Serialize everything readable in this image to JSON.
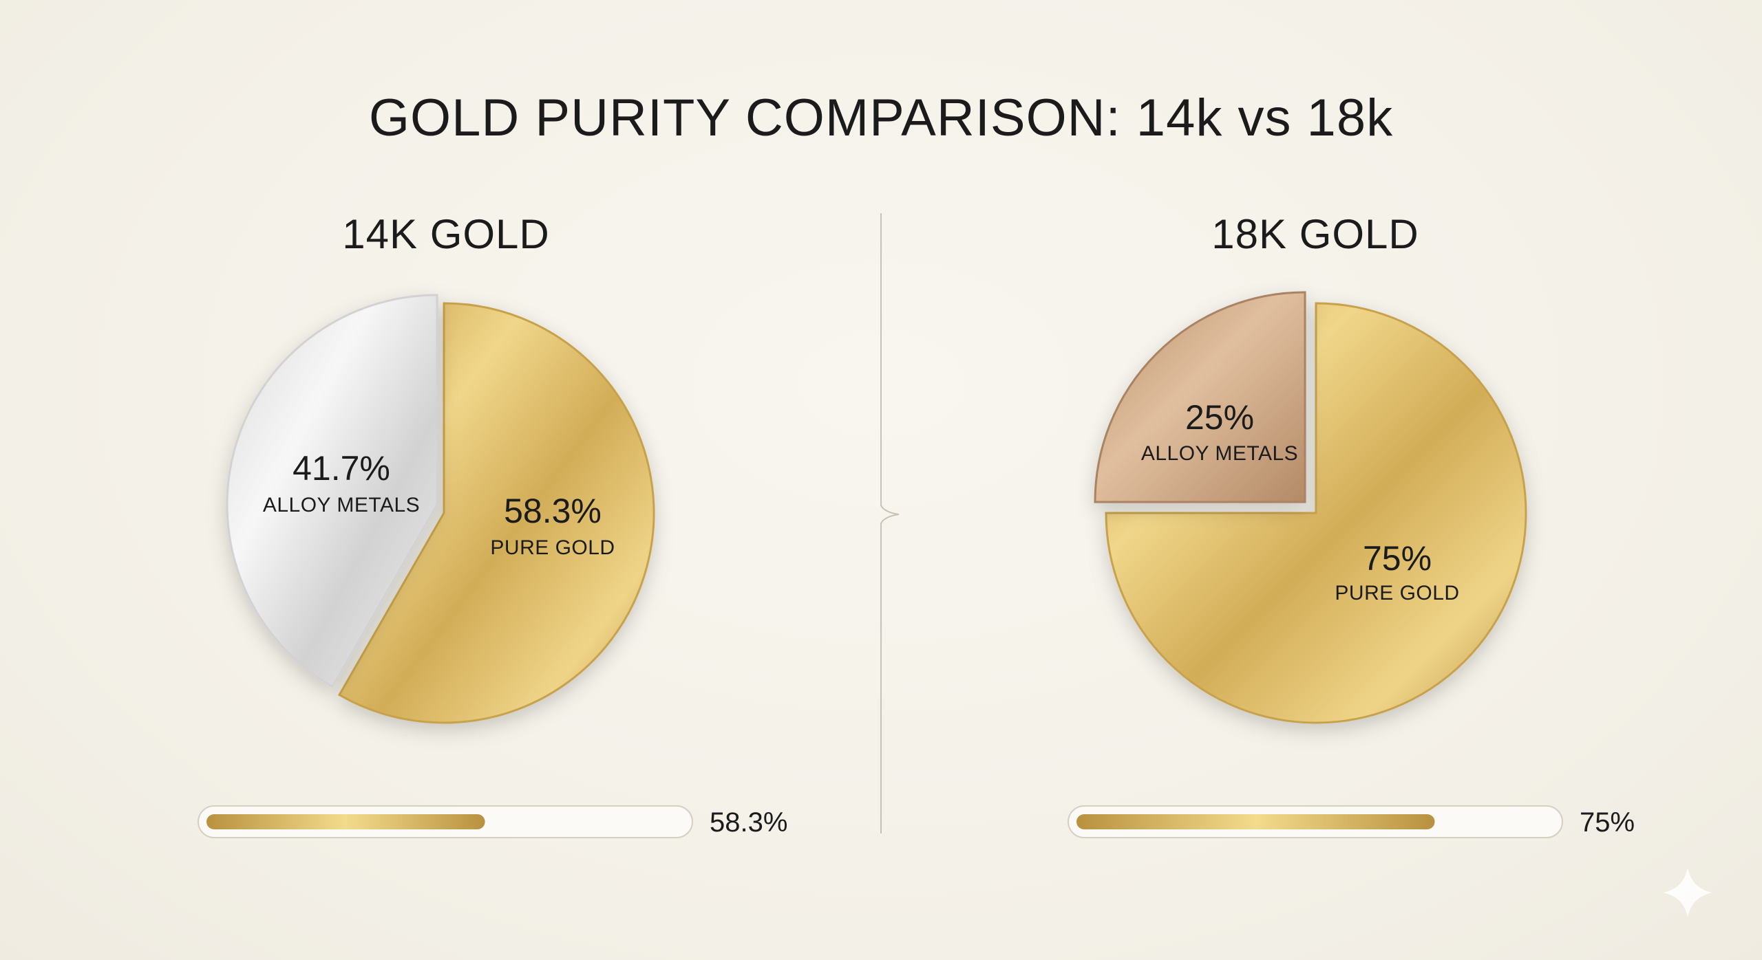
{
  "title": "GOLD PURITY COMPARISON: 14k vs 18k",
  "colors": {
    "gold_light": "#f3db8c",
    "gold_mid": "#d8b45c",
    "gold_dark": "#b8913f",
    "silver_light": "#f6f6f6",
    "silver_mid": "#dcdcdc",
    "silver_dark": "#b9b9b9",
    "rose_light": "#e2c1a0",
    "rose_dark": "#b48a67",
    "divider": "#c9c3b6",
    "bar_track": "#fbfaf6",
    "bar_border": "#d6d0c2"
  },
  "chart_data": [
    {
      "type": "pie",
      "title": "14K GOLD",
      "slices": [
        {
          "label": "PURE GOLD",
          "value": 58.3,
          "display": "58.3%",
          "color": "gold"
        },
        {
          "label": "ALLOY METALS",
          "value": 41.7,
          "display": "41.7%",
          "color": "silver"
        }
      ],
      "bar": {
        "value": 58.3,
        "display": "58.3%"
      }
    },
    {
      "type": "pie",
      "title": "18K GOLD",
      "slices": [
        {
          "label": "PURE GOLD",
          "value": 75,
          "display": "75%",
          "color": "gold"
        },
        {
          "label": "ALLOY METALS",
          "value": 25,
          "display": "25%",
          "color": "rose"
        }
      ],
      "bar": {
        "value": 75,
        "display": "75%"
      }
    }
  ]
}
